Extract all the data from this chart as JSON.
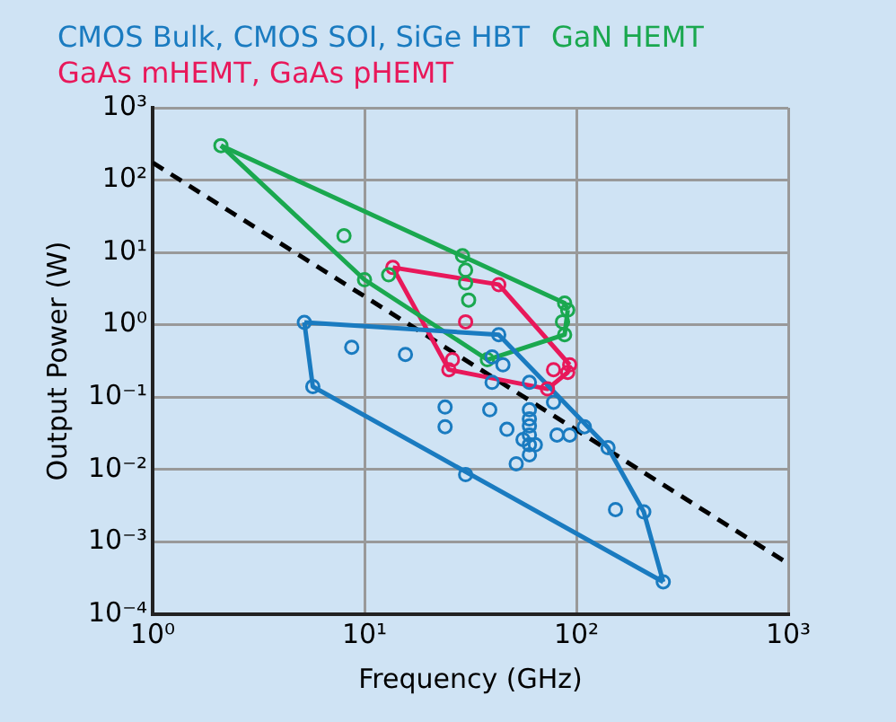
{
  "chart_data": {
    "type": "scatter",
    "xlabel": "Frequency (GHz)",
    "ylabel": "Output Power (W)",
    "log": "xy",
    "xlim": [
      1,
      1000
    ],
    "ylim": [
      0.0001,
      1000
    ],
    "xticks": [
      {
        "value": 1,
        "label": "10⁰"
      },
      {
        "value": 10,
        "label": "10¹"
      },
      {
        "value": 100,
        "label": "10²"
      },
      {
        "value": 1000,
        "label": "10³"
      }
    ],
    "yticks": [
      {
        "value": 0.0001,
        "label": "10⁻⁴"
      },
      {
        "value": 0.001,
        "label": "10⁻³"
      },
      {
        "value": 0.01,
        "label": "10⁻²"
      },
      {
        "value": 0.1,
        "label": "10⁻¹"
      },
      {
        "value": 1,
        "label": "10⁰"
      },
      {
        "value": 10,
        "label": "10¹"
      },
      {
        "value": 100,
        "label": "10²"
      },
      {
        "value": 1000,
        "label": "10³"
      }
    ],
    "grid": true,
    "legend": "top",
    "marker": "circle",
    "series": [
      {
        "name": "CMOS Bulk, CMOS SOI, SiGe HBT",
        "color": "#1a7bc0",
        "x": [
          5.2,
          5.7,
          8.7,
          15.6,
          43,
          40,
          45,
          40,
          24,
          24,
          30,
          39,
          47,
          60,
          60,
          60,
          60,
          60,
          60,
          60,
          52,
          56,
          64,
          78,
          81,
          93,
          109,
          141,
          153,
          208,
          257
        ],
        "values": [
          1.08,
          0.14,
          0.49,
          0.39,
          0.73,
          0.36,
          0.28,
          0.16,
          0.073,
          0.039,
          0.0085,
          0.067,
          0.036,
          0.16,
          0.067,
          0.05,
          0.04,
          0.03,
          0.022,
          0.016,
          0.012,
          0.026,
          0.022,
          0.085,
          0.03,
          0.03,
          0.039,
          0.02,
          0.0028,
          0.0026,
          0.00028
        ]
      },
      {
        "name": "GaN HEMT",
        "color": "#1aa84f",
        "x": [
          2.1,
          8,
          10,
          13,
          29,
          30,
          30,
          31,
          38,
          88,
          91,
          86,
          88
        ],
        "values": [
          300,
          17,
          4.2,
          4.9,
          9,
          5.7,
          3.8,
          2.2,
          0.33,
          2,
          1.6,
          1.1,
          0.73
        ]
      },
      {
        "name": "GaAs mHEMT, GaAs pHEMT",
        "color": "#e8185a",
        "x": [
          13.6,
          43,
          30,
          26,
          25,
          93,
          91,
          78,
          73
        ],
        "values": [
          6.2,
          3.6,
          1.1,
          0.33,
          0.24,
          0.28,
          0.22,
          0.24,
          0.13
        ]
      },
      {
        "type": "line",
        "color": "#1a7bc0",
        "marker": "none",
        "x": [
          5.2,
          43,
          141,
          208,
          257
        ],
        "values": [
          1.08,
          0.73,
          0.02,
          0.0026,
          0.00028
        ]
      },
      {
        "type": "line",
        "color": "#1a7bc0",
        "marker": "none",
        "x": [
          5.2,
          5.7,
          257
        ],
        "values": [
          1.08,
          0.14,
          0.00028
        ]
      },
      {
        "type": "line",
        "color": "#1aa84f",
        "marker": "none",
        "x": [
          2.1,
          88,
          91
        ],
        "values": [
          300,
          2,
          1.6
        ]
      },
      {
        "type": "line",
        "color": "#1aa84f",
        "marker": "none",
        "x": [
          2.1,
          10,
          38,
          88,
          91
        ],
        "values": [
          300,
          4.2,
          0.33,
          0.73,
          1.6
        ]
      },
      {
        "type": "line",
        "color": "#e8185a",
        "marker": "none",
        "x": [
          13.6,
          43,
          93
        ],
        "values": [
          6.2,
          3.6,
          0.28
        ]
      },
      {
        "type": "line",
        "color": "#e8185a",
        "marker": "none",
        "x": [
          13.6,
          25,
          73,
          91,
          93
        ],
        "values": [
          6.2,
          0.24,
          0.13,
          0.22,
          0.28
        ]
      },
      {
        "type": "line",
        "color": "#000000",
        "marker": "none",
        "line_style": "dashed",
        "x": [
          1,
          1000
        ],
        "values": [
          174,
          0.0005
        ]
      }
    ]
  }
}
